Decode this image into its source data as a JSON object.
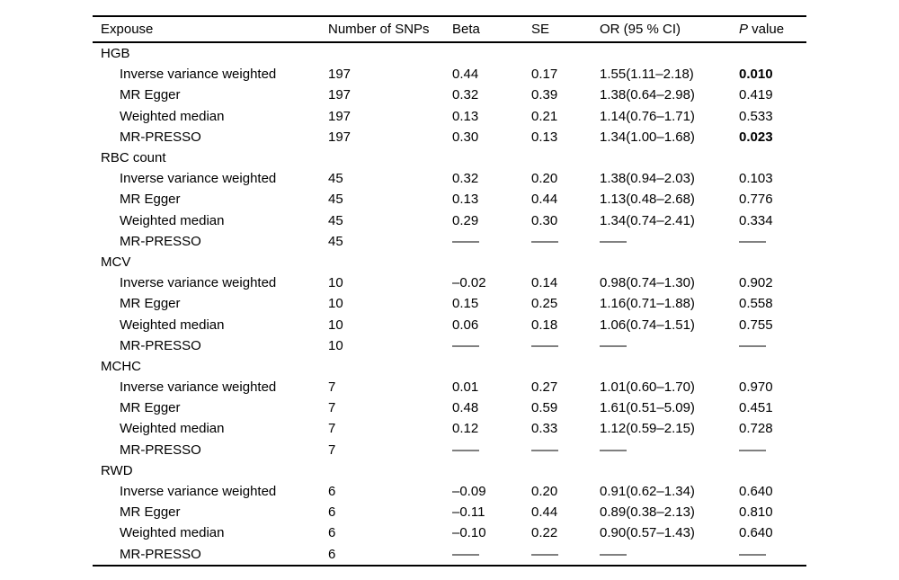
{
  "table": {
    "header": {
      "expouse": "Expouse",
      "snps": "Number of SNPs",
      "beta": "Beta",
      "se": "SE",
      "or_ci": "OR (95 % CI)",
      "p_italic": "P",
      "p_rest": " value"
    },
    "empty_cell": "——",
    "groups": [
      {
        "label": "HGB",
        "rows": [
          {
            "method": "Inverse variance weighted",
            "snps": "197",
            "beta": "0.44",
            "se": "0.17",
            "or_ci": "1.55(1.11–2.18)",
            "p": "0.010",
            "p_bold": true
          },
          {
            "method": "MR Egger",
            "snps": "197",
            "beta": "0.32",
            "se": "0.39",
            "or_ci": "1.38(0.64–2.98)",
            "p": "0.419",
            "p_bold": false
          },
          {
            "method": "Weighted median",
            "snps": "197",
            "beta": "0.13",
            "se": "0.21",
            "or_ci": "1.14(0.76–1.71)",
            "p": "0.533",
            "p_bold": false
          },
          {
            "method": "MR-PRESSO",
            "snps": "197",
            "beta": "0.30",
            "se": "0.13",
            "or_ci": "1.34(1.00–1.68)",
            "p": "0.023",
            "p_bold": true
          }
        ]
      },
      {
        "label": "RBC count",
        "rows": [
          {
            "method": "Inverse variance weighted",
            "snps": "45",
            "beta": "0.32",
            "se": "0.20",
            "or_ci": "1.38(0.94–2.03)",
            "p": "0.103",
            "p_bold": false
          },
          {
            "method": "MR Egger",
            "snps": "45",
            "beta": "0.13",
            "se": "0.44",
            "or_ci": "1.13(0.48–2.68)",
            "p": "0.776",
            "p_bold": false
          },
          {
            "method": "Weighted median",
            "snps": "45",
            "beta": "0.29",
            "se": "0.30",
            "or_ci": "1.34(0.74–2.41)",
            "p": "0.334",
            "p_bold": false
          },
          {
            "method": "MR-PRESSO",
            "snps": "45",
            "beta": "——",
            "se": "——",
            "or_ci": "——",
            "p": "——",
            "p_bold": false
          }
        ]
      },
      {
        "label": "MCV",
        "rows": [
          {
            "method": "Inverse variance weighted",
            "snps": "10",
            "beta": "–0.02",
            "se": "0.14",
            "or_ci": "0.98(0.74–1.30)",
            "p": "0.902",
            "p_bold": false
          },
          {
            "method": "MR Egger",
            "snps": "10",
            "beta": "0.15",
            "se": "0.25",
            "or_ci": "1.16(0.71–1.88)",
            "p": "0.558",
            "p_bold": false
          },
          {
            "method": "Weighted median",
            "snps": "10",
            "beta": "0.06",
            "se": "0.18",
            "or_ci": "1.06(0.74–1.51)",
            "p": "0.755",
            "p_bold": false
          },
          {
            "method": "MR-PRESSO",
            "snps": "10",
            "beta": "——",
            "se": "——",
            "or_ci": "——",
            "p": "——",
            "p_bold": false
          }
        ]
      },
      {
        "label": "MCHC",
        "rows": [
          {
            "method": "Inverse variance weighted",
            "snps": "7",
            "beta": "0.01",
            "se": "0.27",
            "or_ci": "1.01(0.60–1.70)",
            "p": "0.970",
            "p_bold": false
          },
          {
            "method": "MR Egger",
            "snps": "7",
            "beta": "0.48",
            "se": "0.59",
            "or_ci": "1.61(0.51–5.09)",
            "p": "0.451",
            "p_bold": false
          },
          {
            "method": "Weighted median",
            "snps": "7",
            "beta": "0.12",
            "se": "0.33",
            "or_ci": "1.12(0.59–2.15)",
            "p": "0.728",
            "p_bold": false
          },
          {
            "method": "MR-PRESSO",
            "snps": "7",
            "beta": "——",
            "se": "——",
            "or_ci": "——",
            "p": "——",
            "p_bold": false
          }
        ]
      },
      {
        "label": "RWD",
        "rows": [
          {
            "method": "Inverse variance weighted",
            "snps": "6",
            "beta": "–0.09",
            "se": "0.20",
            "or_ci": "0.91(0.62–1.34)",
            "p": "0.640",
            "p_bold": false
          },
          {
            "method": "MR Egger",
            "snps": "6",
            "beta": "–0.11",
            "se": "0.44",
            "or_ci": "0.89(0.38–2.13)",
            "p": "0.810",
            "p_bold": false
          },
          {
            "method": "Weighted median",
            "snps": "6",
            "beta": "–0.10",
            "se": "0.22",
            "or_ci": "0.90(0.57–1.43)",
            "p": "0.640",
            "p_bold": false
          },
          {
            "method": "MR-PRESSO",
            "snps": "6",
            "beta": "——",
            "se": "——",
            "or_ci": "——",
            "p": "——",
            "p_bold": false
          }
        ]
      }
    ]
  }
}
